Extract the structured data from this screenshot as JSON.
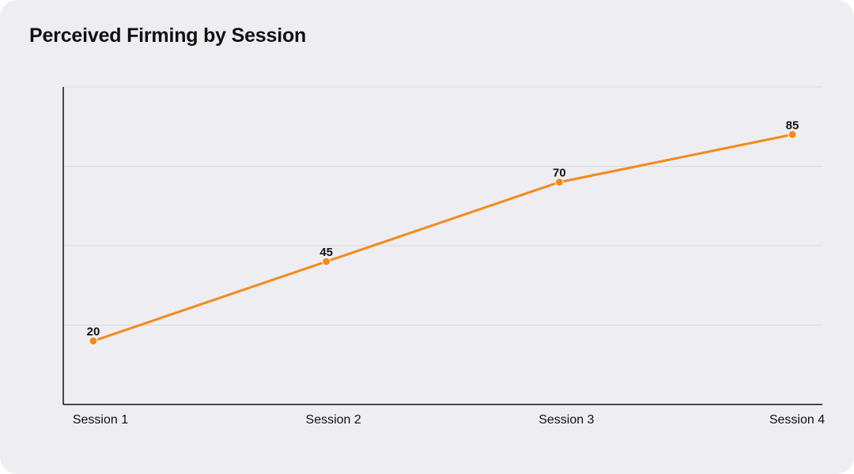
{
  "chart_data": {
    "type": "line",
    "title": "Perceived Firming by Session",
    "categories": [
      "Session 1",
      "Session 2",
      "Session 3",
      "Session 4"
    ],
    "series": [
      {
        "values": [
          20,
          45,
          70,
          85
        ]
      }
    ],
    "ylim": [
      0,
      100
    ],
    "grid": true,
    "data_labels": true,
    "line_color": "#f28a1c",
    "marker_color": "#f28a1c"
  }
}
